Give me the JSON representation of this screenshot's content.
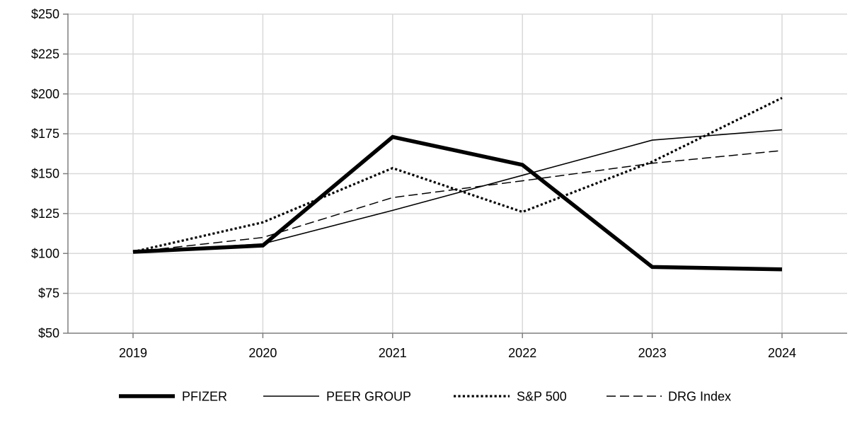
{
  "chart_data": {
    "type": "line",
    "title": "",
    "xlabel": "",
    "ylabel": "",
    "categories": [
      "2019",
      "2020",
      "2021",
      "2022",
      "2023",
      "2024"
    ],
    "ylim": [
      50,
      250
    ],
    "yticks": [
      50,
      75,
      100,
      125,
      150,
      175,
      200,
      225,
      250
    ],
    "ytick_labels": [
      "$50",
      "$75",
      "$100",
      "$125",
      "$150",
      "$175",
      "$200",
      "$225",
      "$250"
    ],
    "grid": true,
    "legend_position": "bottom",
    "series": [
      {
        "name": "PFIZER",
        "values": [
          101,
          105,
          173,
          155.5,
          91.5,
          90
        ],
        "style": "thick-solid"
      },
      {
        "name": "PEER GROUP",
        "values": [
          101,
          106,
          127,
          149,
          171,
          177.5
        ],
        "style": "thin-solid"
      },
      {
        "name": "S&P 500",
        "values": [
          101,
          119.5,
          153.5,
          126,
          157.5,
          197.5
        ],
        "style": "dotted"
      },
      {
        "name": "DRG Index",
        "values": [
          101,
          110,
          135,
          145.5,
          156.5,
          164.5
        ],
        "style": "dashed"
      }
    ],
    "colors": {
      "line": "#000000",
      "grid": "#d9d9d9",
      "axis": "#7f7f7f"
    }
  }
}
